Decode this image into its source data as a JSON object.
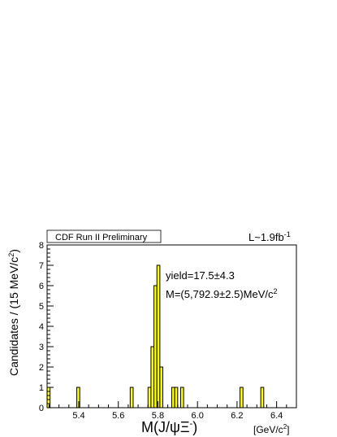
{
  "chart_data": {
    "type": "bar",
    "title": "CDF Run II Preliminary",
    "luminosity": {
      "base": "L~1.9fb",
      "sup": "-1"
    },
    "xlabel": {
      "main": "M(J/ψΞ",
      "sup": "-",
      "close": ")"
    },
    "xunit": {
      "base": "[GeV/c",
      "sup": "2",
      "close": "]"
    },
    "ylabel": {
      "base": "Candidates / (15 MeV/c",
      "sup": "2",
      "close": ")"
    },
    "xlim": [
      5.24,
      6.5
    ],
    "ylim": [
      0,
      8
    ],
    "bin_width": 0.015,
    "xticks": [
      {
        "v": 5.4,
        "label": "5.4"
      },
      {
        "v": 5.6,
        "label": "5.6"
      },
      {
        "v": 5.8,
        "label": "5.8"
      },
      {
        "v": 6.0,
        "label": "6.0"
      },
      {
        "v": 6.2,
        "label": "6.2"
      },
      {
        "v": 6.4,
        "label": "6.4"
      }
    ],
    "yticks": [
      0,
      1,
      2,
      3,
      4,
      5,
      6,
      7,
      8
    ],
    "bins": [
      {
        "x": 5.24,
        "count": 1
      },
      {
        "x": 5.39,
        "count": 1
      },
      {
        "x": 5.66,
        "count": 1
      },
      {
        "x": 5.75,
        "count": 1
      },
      {
        "x": 5.765,
        "count": 3
      },
      {
        "x": 5.78,
        "count": 6
      },
      {
        "x": 5.795,
        "count": 7
      },
      {
        "x": 5.81,
        "count": 2
      },
      {
        "x": 5.87,
        "count": 1
      },
      {
        "x": 5.885,
        "count": 1
      },
      {
        "x": 5.915,
        "count": 1
      },
      {
        "x": 6.215,
        "count": 1
      },
      {
        "x": 6.32,
        "count": 1
      }
    ],
    "fill_color": "#ffff00",
    "annotations": {
      "yield": "yield=17.5±4.3",
      "mass": {
        "base": "M=(5,792.9±2.5)MeV/c",
        "sup": "2"
      }
    }
  }
}
